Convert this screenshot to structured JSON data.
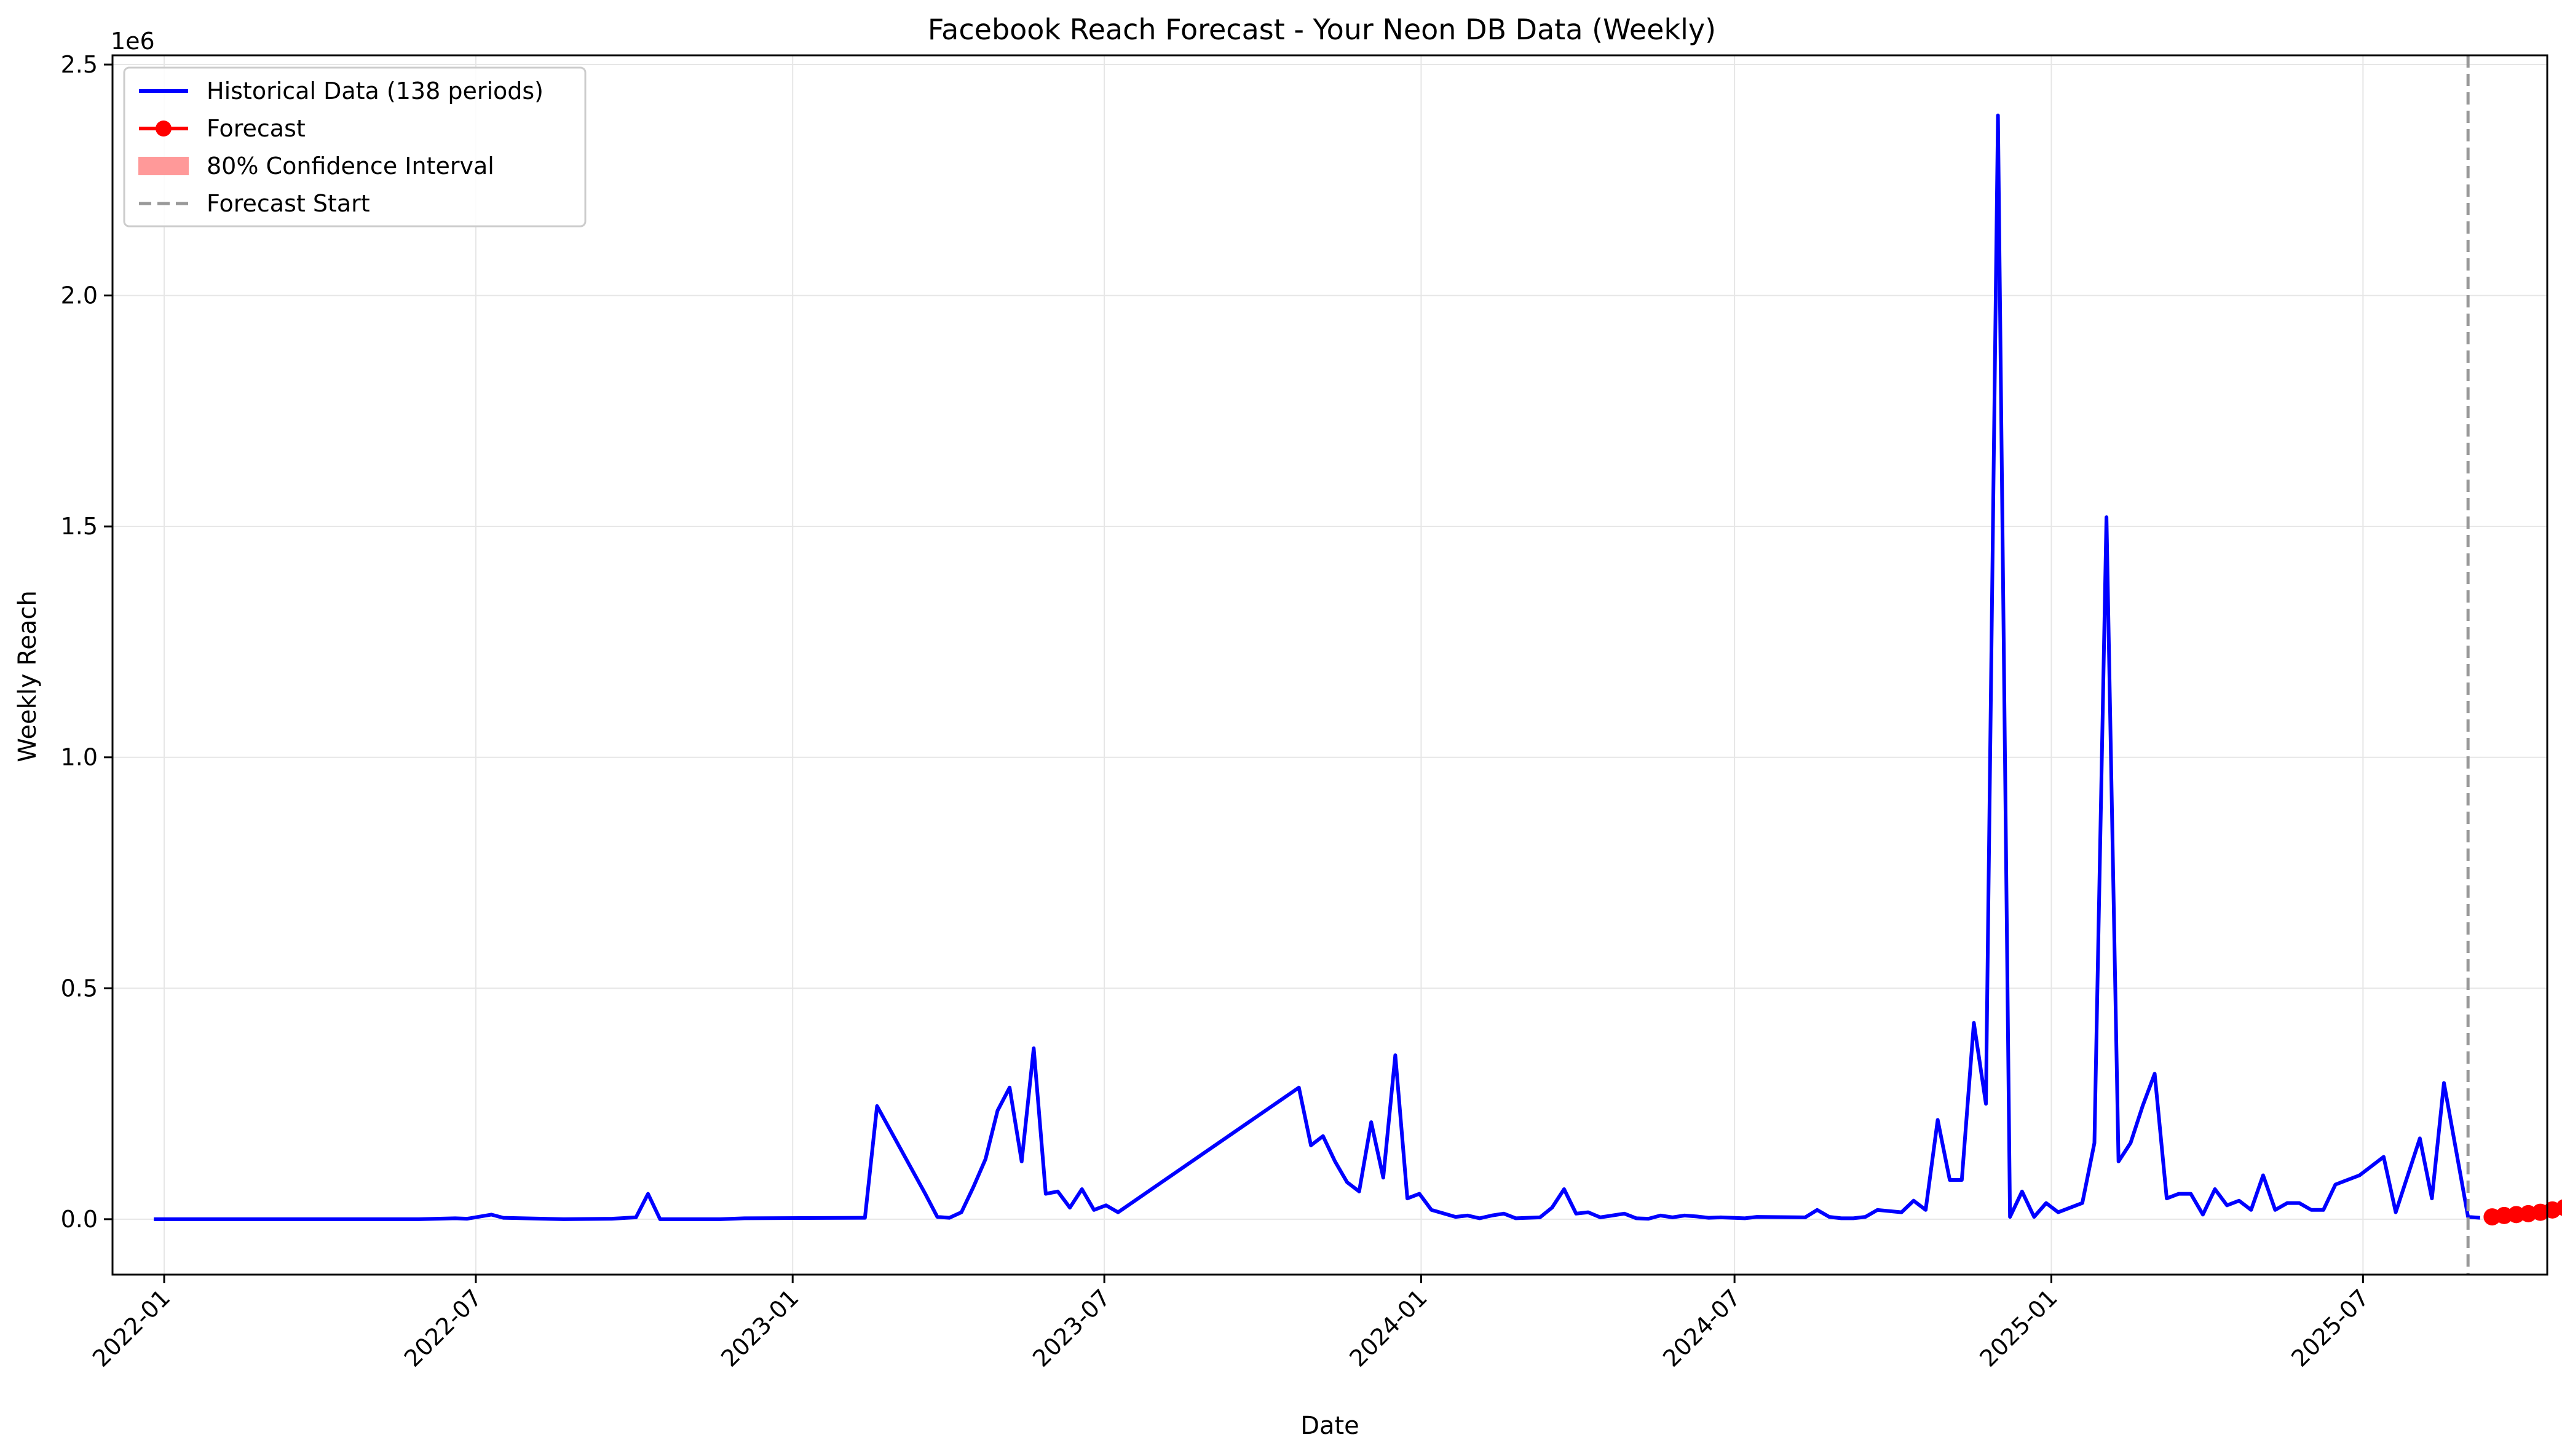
{
  "chart_data": {
    "type": "line",
    "title": "Facebook Reach Forecast - Your Neon DB Data (Weekly)",
    "xlabel": "Date",
    "ylabel": "Weekly Reach",
    "y_offset_label": "1e6",
    "ylim": [
      -120000,
      2520000
    ],
    "xlim": [
      "2021-12-02",
      "2025-10-16"
    ],
    "grid": true,
    "legend_position": "top-left",
    "x_ticks": [
      "2022-01",
      "2022-07",
      "2023-01",
      "2023-07",
      "2024-01",
      "2024-07",
      "2025-01",
      "2025-07"
    ],
    "y_ticks": [
      {
        "value": 0,
        "label": "0.0"
      },
      {
        "value": 500000,
        "label": "0.5"
      },
      {
        "value": 1000000,
        "label": "1.0"
      },
      {
        "value": 1500000,
        "label": "1.5"
      },
      {
        "value": 2000000,
        "label": "2.0"
      },
      {
        "value": 2500000,
        "label": "2.5"
      }
    ],
    "forecast_start": "2025-08-31",
    "colors": {
      "historical": "#0000ff",
      "forecast": "#ff0000",
      "ci": "#ff9999",
      "vline": "#999999",
      "grid": "#e6e6e6"
    },
    "legend": [
      {
        "key": "historical",
        "label": "Historical Data (138 periods)",
        "style": "line"
      },
      {
        "key": "forecast",
        "label": "Forecast",
        "style": "line-marker"
      },
      {
        "key": "ci",
        "label": "80% Confidence Interval",
        "style": "patch"
      },
      {
        "key": "vline",
        "label": "Forecast Start",
        "style": "dashed"
      }
    ],
    "series": [
      {
        "name": "Historical Data (138 periods)",
        "points": [
          [
            "2021-12-26",
            0
          ],
          [
            "2022-05-29",
            0
          ],
          [
            "2022-06-19",
            2000
          ],
          [
            "2022-06-26",
            1000
          ],
          [
            "2022-07-10",
            10000
          ],
          [
            "2022-07-17",
            3000
          ],
          [
            "2022-08-21",
            0
          ],
          [
            "2022-09-18",
            1000
          ],
          [
            "2022-10-02",
            4000
          ],
          [
            "2022-10-09",
            55000
          ],
          [
            "2022-10-16",
            0
          ],
          [
            "2022-11-20",
            0
          ],
          [
            "2022-12-04",
            2000
          ],
          [
            "2023-02-12",
            3000
          ],
          [
            "2023-02-19",
            245000
          ],
          [
            "2023-03-19",
            55000
          ],
          [
            "2023-03-26",
            5000
          ],
          [
            "2023-04-02",
            3000
          ],
          [
            "2023-04-09",
            15000
          ],
          [
            "2023-04-16",
            70000
          ],
          [
            "2023-04-23",
            130000
          ],
          [
            "2023-04-30",
            235000
          ],
          [
            "2023-05-07",
            285000
          ],
          [
            "2023-05-14",
            125000
          ],
          [
            "2023-05-21",
            370000
          ],
          [
            "2023-05-28",
            55000
          ],
          [
            "2023-06-04",
            60000
          ],
          [
            "2023-06-11",
            25000
          ],
          [
            "2023-06-18",
            65000
          ],
          [
            "2023-06-25",
            20000
          ],
          [
            "2023-07-02",
            30000
          ],
          [
            "2023-07-09",
            15000
          ],
          [
            "2023-10-22",
            285000
          ],
          [
            "2023-10-29",
            160000
          ],
          [
            "2023-11-05",
            180000
          ],
          [
            "2023-11-12",
            125000
          ],
          [
            "2023-11-19",
            80000
          ],
          [
            "2023-11-26",
            60000
          ],
          [
            "2023-12-03",
            210000
          ],
          [
            "2023-12-10",
            90000
          ],
          [
            "2023-12-17",
            355000
          ],
          [
            "2023-12-24",
            45000
          ],
          [
            "2023-12-31",
            55000
          ],
          [
            "2024-01-07",
            20000
          ],
          [
            "2024-01-21",
            5000
          ],
          [
            "2024-01-28",
            8000
          ],
          [
            "2024-02-04",
            2000
          ],
          [
            "2024-02-11",
            8000
          ],
          [
            "2024-02-18",
            12000
          ],
          [
            "2024-02-25",
            2000
          ],
          [
            "2024-03-10",
            4000
          ],
          [
            "2024-03-17",
            25000
          ],
          [
            "2024-03-24",
            65000
          ],
          [
            "2024-03-31",
            12000
          ],
          [
            "2024-04-07",
            15000
          ],
          [
            "2024-04-14",
            4000
          ],
          [
            "2024-04-21",
            8000
          ],
          [
            "2024-04-28",
            12000
          ],
          [
            "2024-05-05",
            2000
          ],
          [
            "2024-05-12",
            1000
          ],
          [
            "2024-05-19",
            8000
          ],
          [
            "2024-05-26",
            4000
          ],
          [
            "2024-06-02",
            8000
          ],
          [
            "2024-06-09",
            6000
          ],
          [
            "2024-06-16",
            3000
          ],
          [
            "2024-06-23",
            4000
          ],
          [
            "2024-07-07",
            2000
          ],
          [
            "2024-07-14",
            5000
          ],
          [
            "2024-08-11",
            4000
          ],
          [
            "2024-08-18",
            20000
          ],
          [
            "2024-08-25",
            5000
          ],
          [
            "2024-09-01",
            2000
          ],
          [
            "2024-09-08",
            2000
          ],
          [
            "2024-09-15",
            5000
          ],
          [
            "2024-09-22",
            20000
          ],
          [
            "2024-10-06",
            15000
          ],
          [
            "2024-10-13",
            40000
          ],
          [
            "2024-10-20",
            20000
          ],
          [
            "2024-10-27",
            215000
          ],
          [
            "2024-11-03",
            85000
          ],
          [
            "2024-11-10",
            85000
          ],
          [
            "2024-11-17",
            425000
          ],
          [
            "2024-11-24",
            250000
          ],
          [
            "2024-12-01",
            2390000
          ],
          [
            "2024-12-08",
            5000
          ],
          [
            "2024-12-15",
            60000
          ],
          [
            "2024-12-22",
            5000
          ],
          [
            "2024-12-29",
            35000
          ],
          [
            "2025-01-05",
            15000
          ],
          [
            "2025-01-12",
            25000
          ],
          [
            "2025-01-19",
            35000
          ],
          [
            "2025-01-26",
            165000
          ],
          [
            "2025-02-02",
            1520000
          ],
          [
            "2025-02-09",
            125000
          ],
          [
            "2025-02-16",
            165000
          ],
          [
            "2025-02-23",
            245000
          ],
          [
            "2025-03-02",
            315000
          ],
          [
            "2025-03-09",
            45000
          ],
          [
            "2025-03-16",
            55000
          ],
          [
            "2025-03-23",
            55000
          ],
          [
            "2025-03-30",
            10000
          ],
          [
            "2025-04-06",
            65000
          ],
          [
            "2025-04-13",
            30000
          ],
          [
            "2025-04-20",
            40000
          ],
          [
            "2025-04-27",
            20000
          ],
          [
            "2025-05-04",
            95000
          ],
          [
            "2025-05-11",
            20000
          ],
          [
            "2025-05-18",
            35000
          ],
          [
            "2025-05-25",
            35000
          ],
          [
            "2025-06-01",
            20000
          ],
          [
            "2025-06-08",
            20000
          ],
          [
            "2025-06-15",
            75000
          ],
          [
            "2025-06-29",
            95000
          ],
          [
            "2025-07-13",
            135000
          ],
          [
            "2025-07-20",
            15000
          ],
          [
            "2025-08-03",
            175000
          ],
          [
            "2025-08-10",
            45000
          ],
          [
            "2025-08-17",
            295000
          ],
          [
            "2025-08-31",
            5000
          ],
          [
            "2025-09-07",
            3000
          ]
        ]
      },
      {
        "name": "Forecast",
        "points": [
          [
            "2025-09-14",
            5000
          ],
          [
            "2025-09-21",
            8000
          ],
          [
            "2025-09-28",
            10000
          ],
          [
            "2025-10-05",
            12000
          ],
          [
            "2025-10-12",
            15000
          ],
          [
            "2025-10-19",
            20000
          ],
          [
            "2025-10-26",
            25000
          ]
        ]
      }
    ]
  }
}
